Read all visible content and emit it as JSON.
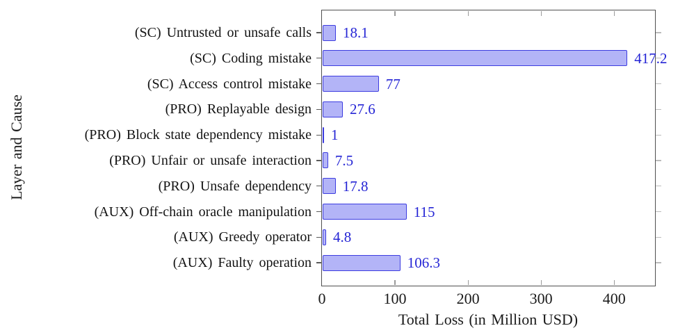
{
  "chart_data": {
    "type": "bar",
    "orientation": "horizontal",
    "title": "",
    "xlabel": "Total Loss (in Million USD)",
    "ylabel": "Layer and Cause",
    "categories": [
      "(SC) Untrusted or unsafe calls",
      "(SC) Coding mistake",
      "(SC) Access control mistake",
      "(PRO) Replayable design",
      "(PRO) Block state dependency mistake",
      "(PRO) Unfair or unsafe interaction",
      "(PRO) Unsafe dependency",
      "(AUX) Off-chain oracle manipulation",
      "(AUX) Greedy operator",
      "(AUX) Faulty operation"
    ],
    "values": [
      18.1,
      417.2,
      77,
      27.6,
      1,
      7.5,
      17.8,
      115,
      4.8,
      106.3
    ],
    "value_labels": [
      "18.1",
      "417.2",
      "77",
      "27.6",
      "1",
      "7.5",
      "17.8",
      "115",
      "4.8",
      "106.3"
    ],
    "xticks": [
      0,
      100,
      200,
      300,
      400
    ],
    "xtick_labels": [
      "0",
      "100",
      "200",
      "300",
      "400"
    ],
    "xlim": [
      0,
      456
    ],
    "grid": false,
    "legend_position": "none",
    "colors": {
      "bar_fill": "#b3b4f7",
      "bar_border": "#3c3ce0",
      "value_text": "#2525d5",
      "axis_frame": "#4f4f4f",
      "tick": "#9a9a9a",
      "text": "#131313"
    }
  }
}
